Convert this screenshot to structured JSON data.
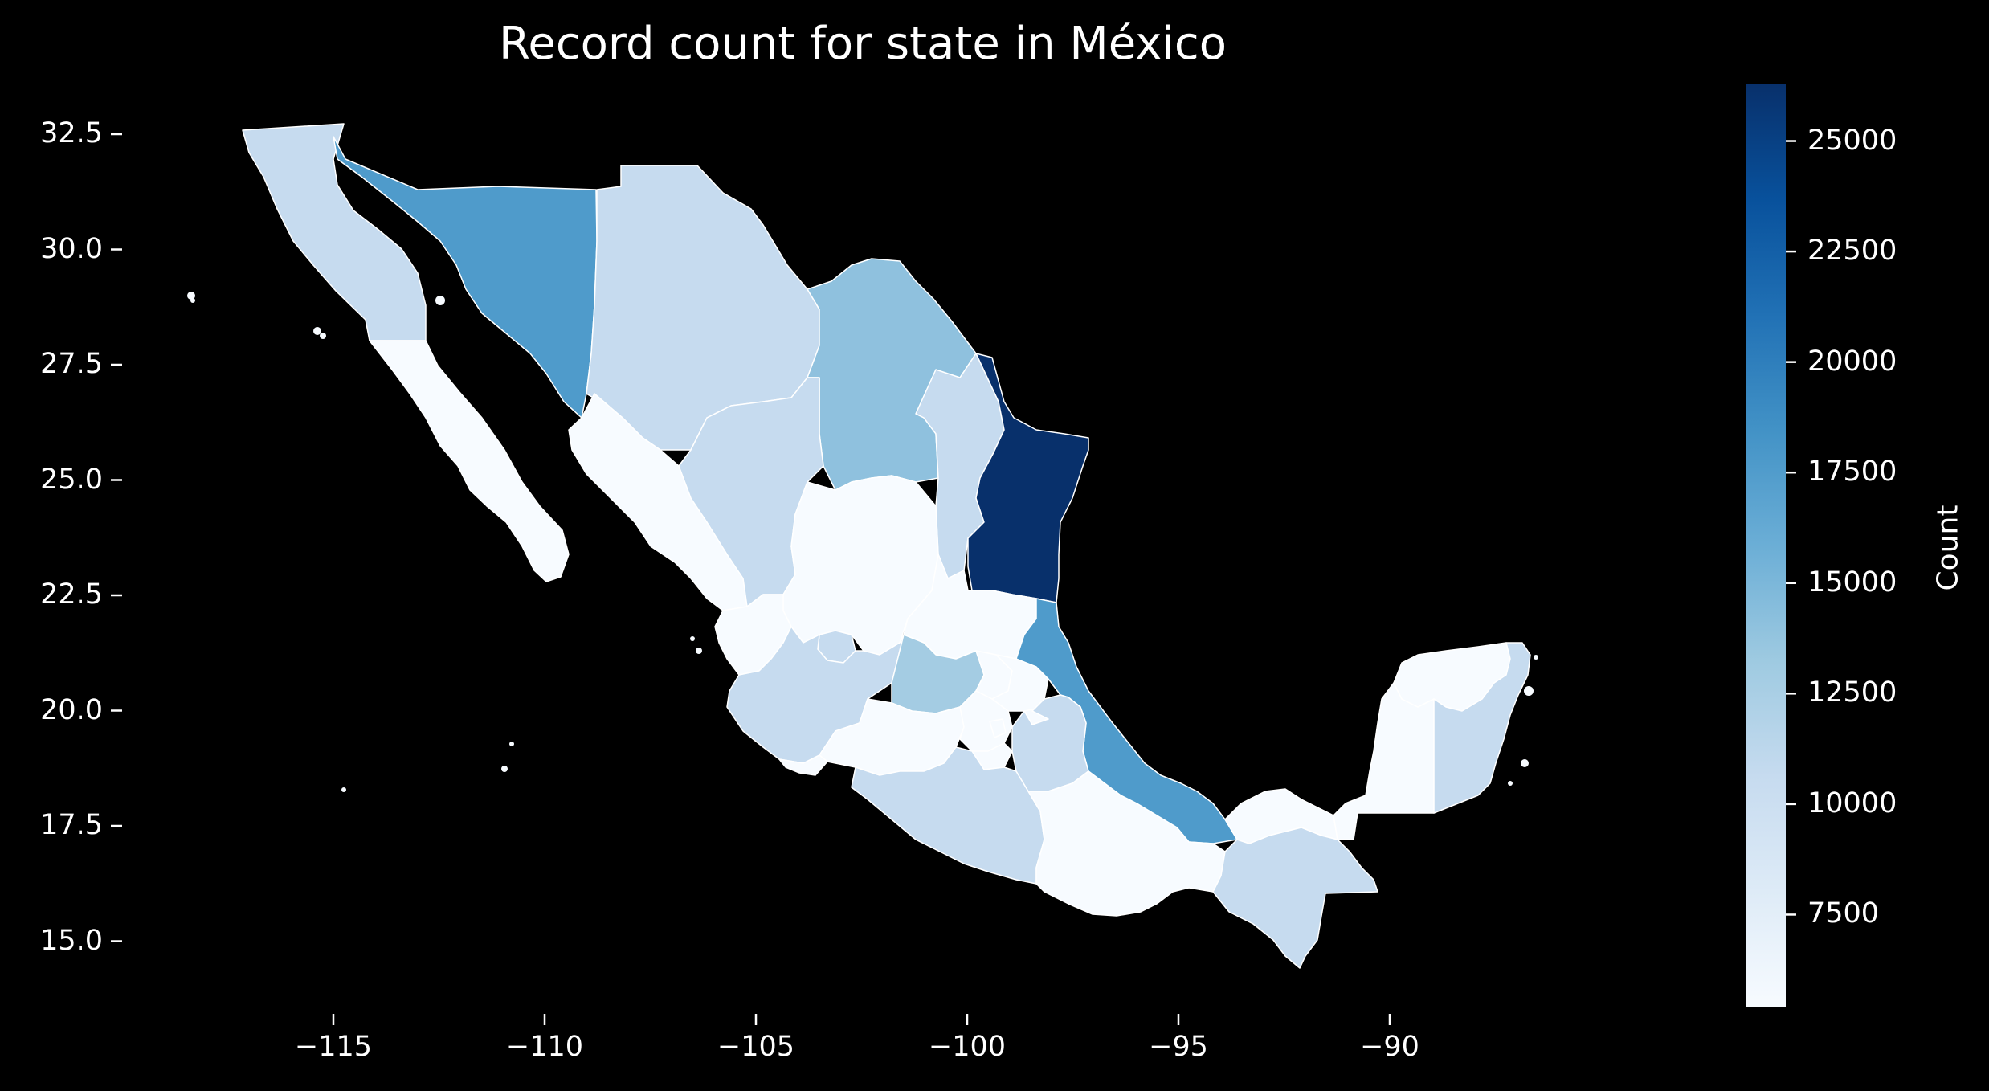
{
  "title": "Record count for state in México",
  "chart_data": {
    "type": "choropleth",
    "title": "Record count for state in México",
    "x_ticks": [
      "−115",
      "−110",
      "−105",
      "−100",
      "−95",
      "−90"
    ],
    "x_tick_values": [
      -115,
      -110,
      -105,
      -100,
      -95,
      -90
    ],
    "y_ticks": [
      "32.5",
      "30.0",
      "27.5",
      "25.0",
      "22.5",
      "20.0",
      "17.5",
      "15.0"
    ],
    "y_tick_values": [
      32.5,
      30.0,
      27.5,
      25.0,
      22.5,
      20.0,
      17.5,
      15.0
    ],
    "xlim": [
      -119.5,
      -85.5
    ],
    "ylim": [
      13.8,
      33.1
    ],
    "colorbar": {
      "label": "Count",
      "ticks": [
        "25000",
        "22500",
        "20000",
        "17500",
        "15000",
        "12500",
        "10000",
        "7500"
      ],
      "tick_values": [
        25000,
        22500,
        20000,
        17500,
        15000,
        12500,
        10000,
        7500
      ],
      "range": [
        5400,
        26300
      ],
      "colormap": "Blues"
    },
    "background": "#000000",
    "text_color": "#ffffff",
    "colormap_stops": [
      "#f7fbff",
      "#deebf7",
      "#c6dbef",
      "#9ecae1",
      "#6baed6",
      "#4292c6",
      "#2171b5",
      "#08519c",
      "#08306b"
    ]
  }
}
